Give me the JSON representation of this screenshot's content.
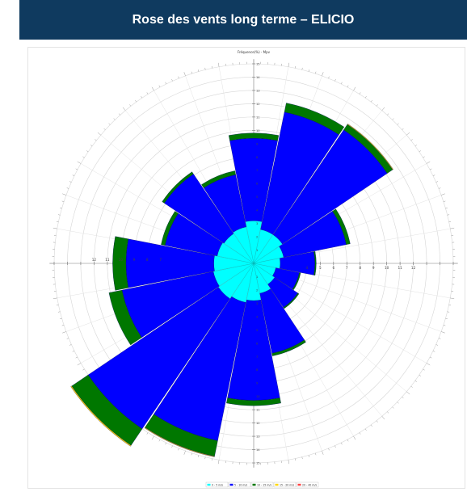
{
  "header": {
    "title": "Rose des vents long terme – ELICIO"
  },
  "chart_data": {
    "type": "polar-bar",
    "title": "Fréquence(%) - Mpv",
    "sectors": 16,
    "start_direction": "N",
    "rotation": "clockwise",
    "radial_axis": {
      "max": 15,
      "step": 1,
      "labels": [
        "1",
        "2",
        "3",
        "4",
        "5",
        "6",
        "7",
        "8",
        "9",
        "10",
        "11",
        "12",
        "13",
        "14",
        "15"
      ]
    },
    "horizontal_axis_labels": {
      "left": [
        "12",
        "11",
        "10",
        "9",
        "8",
        "7"
      ],
      "right": [
        "4",
        "5",
        "6",
        "7",
        "8",
        "9",
        "10",
        "11",
        "12"
      ]
    },
    "colors": [
      "#00ffff",
      "#0000ff",
      "#007700",
      "#ffd700",
      "#ff4444"
    ],
    "legend": {
      "placement": "bottom-center",
      "entries": [
        "0 - 5 m/s",
        "5 - 10 m/s",
        "10 - 15 m/s",
        "15 - 20 m/s",
        "20 - 40 m/s"
      ]
    },
    "series": [
      {
        "values": [
          3.2,
          2.6,
          2.6,
          2.3,
          2.0,
          1.7,
          1.9,
          2.3,
          2.8,
          3.0,
          3.2,
          3.1,
          3.0,
          2.8,
          2.7,
          2.8
        ]
      },
      {
        "values": [
          6.2,
          9.0,
          9.5,
          4.8,
          2.6,
          1.8,
          2.1,
          4.6,
          7.5,
          10.6,
          11.8,
          7.0,
          6.6,
          4.0,
          5.4,
          4.0
        ]
      },
      {
        "values": [
          0.4,
          0.7,
          0.5,
          0.3,
          0.1,
          0.1,
          0.1,
          0.2,
          0.4,
          1.2,
          1.5,
          1.0,
          1.0,
          0.3,
          0.2,
          0.3
        ]
      },
      {
        "values": [
          0,
          0,
          0.05,
          0,
          0,
          0,
          0,
          0,
          0,
          0.05,
          0.08,
          0,
          0,
          0,
          0,
          0
        ]
      },
      {
        "values": [
          0,
          0,
          0,
          0,
          0,
          0,
          0,
          0,
          0,
          0,
          0,
          0,
          0,
          0,
          0,
          0
        ]
      }
    ]
  }
}
